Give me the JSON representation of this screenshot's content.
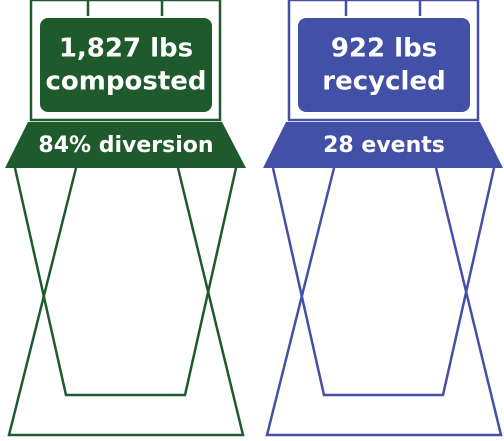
{
  "bins": [
    {
      "line1": "1,827 lbs",
      "line2": "composted",
      "band": "84% diversion"
    },
    {
      "line1": "922 lbs",
      "line2": "recycled",
      "band": "28 events"
    }
  ]
}
